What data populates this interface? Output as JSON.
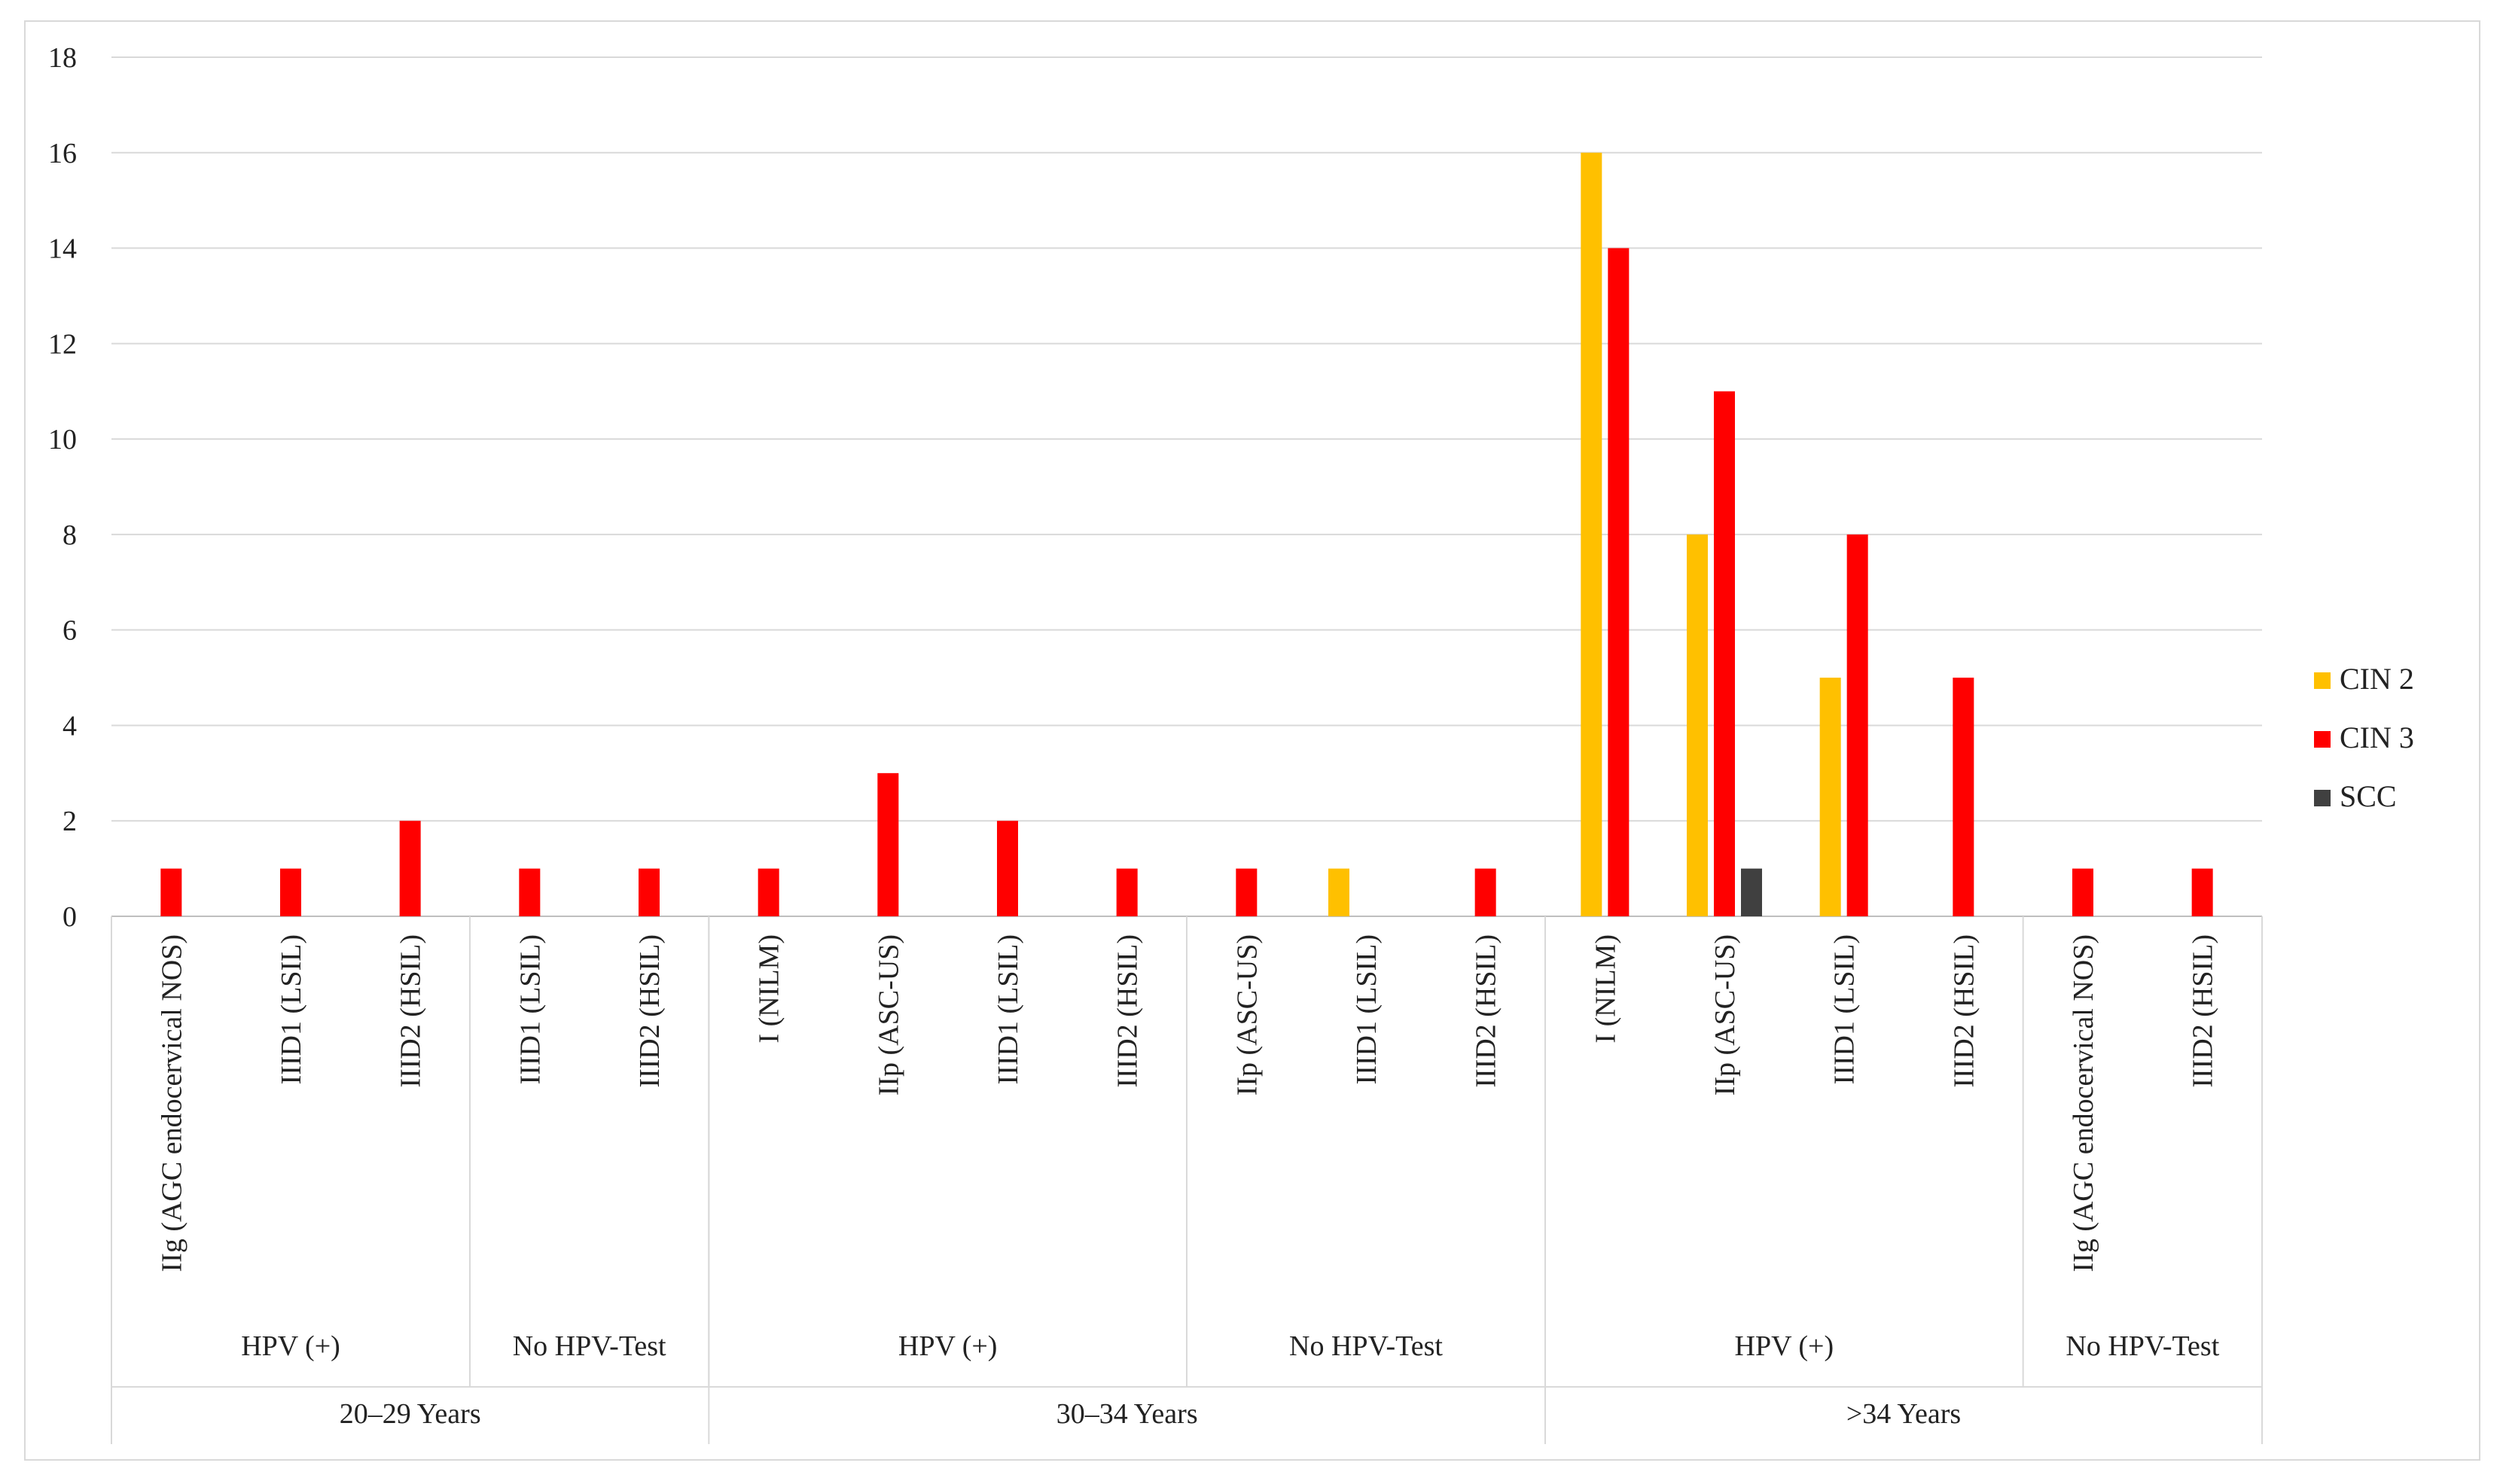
{
  "chart_data": {
    "type": "bar",
    "title": "",
    "xlabel": "",
    "ylabel": "",
    "ylim": [
      0,
      18
    ],
    "yticks": [
      0,
      2,
      4,
      6,
      8,
      10,
      12,
      14,
      16,
      18
    ],
    "grid": true,
    "legend_position": "right",
    "groups": [
      {
        "label": "20–29 Years",
        "subgroups": [
          {
            "label": "HPV (+)",
            "categories": [
              "IIg (AGC endocervical NOS)",
              "IIID1 (LSIL)",
              "IIID2 (HSIL)"
            ]
          },
          {
            "label": "No HPV-Test",
            "categories": [
              "IIID1 (LSIL)",
              "IIID2 (HSIL)"
            ]
          }
        ]
      },
      {
        "label": "30–34 Years",
        "subgroups": [
          {
            "label": "HPV (+)",
            "categories": [
              "I (NILM)",
              "IIp (ASC-US)",
              "IIID1 (LSIL)",
              "IIID2 (HSIL)"
            ]
          },
          {
            "label": "No HPV-Test",
            "categories": [
              "IIp (ASC-US)",
              "IIID1 (LSIL)",
              "IIID2 (HSIL)"
            ]
          }
        ]
      },
      {
        "label": ">34 Years",
        "subgroups": [
          {
            "label": "HPV (+)",
            "categories": [
              "I (NILM)",
              "IIp (ASC-US)",
              "IIID1 (LSIL)",
              "IIID2 (HSIL)"
            ]
          },
          {
            "label": "No HPV-Test",
            "categories": [
              "IIg (AGC endocervical NOS)",
              "IIID2 (HSIL)"
            ]
          }
        ]
      }
    ],
    "categories": [
      "IIg (AGC endocervical NOS)",
      "IIID1 (LSIL)",
      "IIID2 (HSIL)",
      "IIID1 (LSIL)",
      "IIID2 (HSIL)",
      "I (NILM)",
      "IIp (ASC-US)",
      "IIID1 (LSIL)",
      "IIID2 (HSIL)",
      "IIp (ASC-US)",
      "IIID1 (LSIL)",
      "IIID2 (HSIL)",
      "I (NILM)",
      "IIp (ASC-US)",
      "IIID1 (LSIL)",
      "IIID2 (HSIL)",
      "IIg (AGC endocervical NOS)",
      "IIID2 (HSIL)"
    ],
    "series": [
      {
        "name": "CIN 2",
        "color": "#FFC000",
        "values": [
          0,
          0,
          0,
          0,
          0,
          0,
          0,
          0,
          0,
          0,
          1,
          0,
          16,
          8,
          5,
          0,
          0,
          0
        ]
      },
      {
        "name": "CIN 3",
        "color": "#FF0000",
        "values": [
          1,
          1,
          2,
          1,
          1,
          1,
          3,
          2,
          1,
          1,
          0,
          1,
          14,
          11,
          8,
          5,
          1,
          1
        ]
      },
      {
        "name": "SCC",
        "color": "#404040",
        "values": [
          0,
          0,
          0,
          0,
          0,
          0,
          0,
          0,
          0,
          0,
          0,
          0,
          0,
          1,
          0,
          0,
          0,
          0
        ]
      }
    ]
  }
}
